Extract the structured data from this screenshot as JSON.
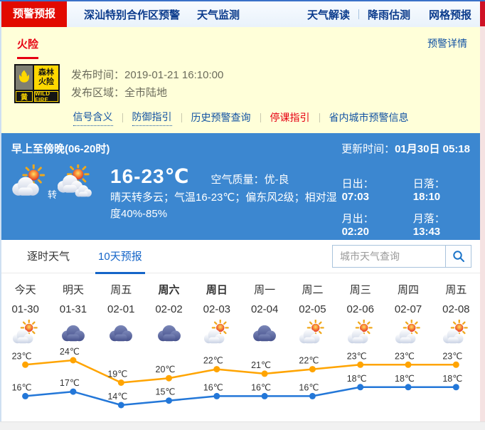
{
  "topnav": {
    "tabs": [
      {
        "label": "预警预报",
        "active": true
      },
      {
        "label": "深汕特别合作区预警",
        "active": false
      },
      {
        "label": "天气监测",
        "active": false
      }
    ],
    "links": [
      {
        "label": "天气解读"
      },
      {
        "label": "降雨估测"
      },
      {
        "label": "网格预报"
      }
    ]
  },
  "alert": {
    "category": "火险",
    "detail_link": "预警详情",
    "badge": {
      "icon": "forest-fire-flame-icon",
      "name_line1": "森林",
      "name_line2": "火险",
      "level": "黄",
      "en": "WILD FIRE"
    },
    "publish_time_label": "发布时间：",
    "publish_time": "2019-01-21 16:10:00",
    "publish_area_label": "发布区域：",
    "publish_area": "全市陆地",
    "links": [
      {
        "label": "信号含义",
        "dotted": true,
        "red": false
      },
      {
        "label": "防御指引",
        "dotted": true,
        "red": false
      },
      {
        "label": "历史预警查询",
        "dotted": false,
        "red": false
      },
      {
        "label": "停课指引",
        "dotted": false,
        "red": true
      },
      {
        "label": "省内城市预警信息",
        "dotted": false,
        "red": false
      }
    ]
  },
  "current": {
    "period": "早上至傍晚(06-20时)",
    "update_label": "更新时间：",
    "update_value": "01月30日 05:18",
    "icons": [
      "sun-cloud",
      "sun-clouds"
    ],
    "transition": "转",
    "temp_range": "16-23℃",
    "aqi_label": "空气质量：",
    "aqi_value": "优-良",
    "description": "晴天转多云；气温16-23℃；偏东风2级；相对湿度40%-85%",
    "sun_moon": [
      {
        "label": "日出：",
        "value": "07:03"
      },
      {
        "label": "日落：",
        "value": "18:10"
      },
      {
        "label": "月出：",
        "value": "02:20"
      },
      {
        "label": "月落：",
        "value": "13:43"
      }
    ]
  },
  "forecast": {
    "tabs": [
      {
        "label": "逐时天气",
        "active": false
      },
      {
        "label": "10天预报",
        "active": true
      }
    ],
    "search_placeholder": "城市天气查询",
    "search_icon": "search-icon"
  },
  "chart_data": {
    "type": "line",
    "categories_day": [
      "今天",
      "明天",
      "周五",
      "周六",
      "周日",
      "周一",
      "周二",
      "周三",
      "周四",
      "周五"
    ],
    "categories_date": [
      "01-30",
      "01-31",
      "02-01",
      "02-02",
      "02-03",
      "02-04",
      "02-05",
      "02-06",
      "02-07",
      "02-08"
    ],
    "weekend_bold": [
      false,
      false,
      false,
      true,
      true,
      false,
      false,
      false,
      false,
      false
    ],
    "weather_icons": [
      "sun-cloud",
      "cloud",
      "cloud",
      "cloud",
      "sun-cloud",
      "cloud",
      "sun-cloud",
      "sun-cloud",
      "sun-cloud",
      "sun-cloud"
    ],
    "unit": "℃",
    "series": [
      {
        "name": "high-temperature",
        "color": "#ffa400",
        "values": [
          23,
          24,
          19,
          20,
          22,
          21,
          22,
          23,
          23,
          23
        ]
      },
      {
        "name": "low-temperature",
        "color": "#2377d8",
        "values": [
          16,
          17,
          14,
          15,
          16,
          16,
          16,
          18,
          18,
          18
        ]
      }
    ],
    "ylim": [
      13,
      25
    ],
    "grid": false,
    "legend": "none",
    "xlabel": "",
    "ylabel": ""
  },
  "colors": {
    "accent_red": "#e20a00",
    "nav_blue": "#0b3b8c",
    "link_blue": "#1353a3",
    "alert_yellow_bg": "#ffffd9",
    "section_blue": "#3c87d0",
    "tab_active_blue": "#1565c8",
    "high_line": "#ffa400",
    "low_line": "#2377d8",
    "badge_yellow": "#ffd800"
  }
}
